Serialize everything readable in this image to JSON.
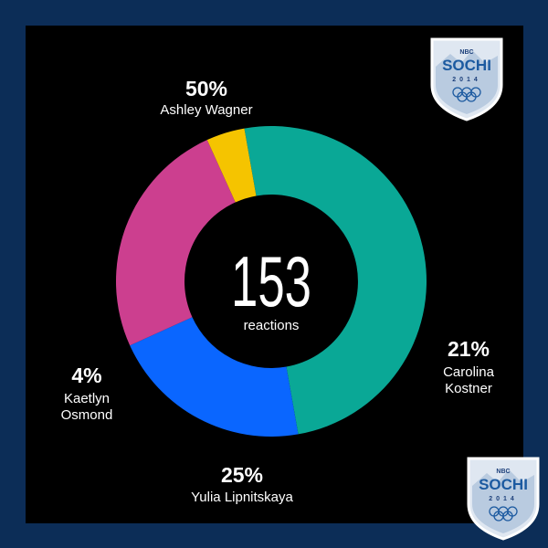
{
  "chart_data": {
    "type": "pie",
    "total": "153",
    "total_label": "reactions",
    "categories": [
      "Ashley Wagner",
      "Carolina Kostner",
      "Yulia Lipnitskaya",
      "Kaetlyn Osmond"
    ],
    "values": [
      50,
      21,
      25,
      4
    ],
    "percent_labels": [
      "50%",
      "21%",
      "25%",
      "4%"
    ],
    "label_lines": [
      [
        "Ashley Wagner"
      ],
      [
        "Carolina",
        "Kostner"
      ],
      [
        "Yulia Lipnitskaya"
      ],
      [
        "Kaetlyn",
        "Osmond"
      ]
    ],
    "colors": [
      "#0aa896",
      "#0a66ff",
      "#cc3f8f",
      "#f5c400"
    ],
    "start_angle_deg": 260
  },
  "logos": {
    "brand": "SOCHI",
    "network": "NBC",
    "year": "2014"
  },
  "colors": {
    "frame": "#0c2d57",
    "panel": "#000000",
    "text": "#ffffff"
  }
}
